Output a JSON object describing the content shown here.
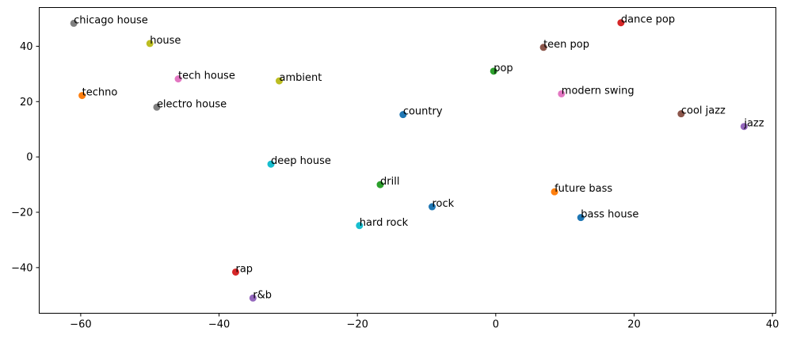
{
  "chart_data": {
    "type": "scatter",
    "title": "",
    "xlabel": "",
    "ylabel": "",
    "xlim": [
      -66,
      40.5
    ],
    "ylim": [
      -56.5,
      54
    ],
    "grid": false,
    "xticks": [
      -60,
      -40,
      -20,
      0,
      20,
      40
    ],
    "yticks": [
      -40,
      -20,
      0,
      20,
      40
    ],
    "xtick_labels": [
      "−60",
      "−40",
      "−20",
      "0",
      "20",
      "40"
    ],
    "ytick_labels": [
      "−40",
      "−20",
      "0",
      "20",
      "40"
    ],
    "points": [
      {
        "label": "chicago house",
        "x": -61.0,
        "y": 48.3,
        "color": "#7f7f7f"
      },
      {
        "label": "house",
        "x": -50.0,
        "y": 41.0,
        "color": "#bcbd22"
      },
      {
        "label": "tech house",
        "x": -45.9,
        "y": 28.2,
        "color": "#e377c2"
      },
      {
        "label": "ambient",
        "x": -31.3,
        "y": 27.5,
        "color": "#bcbd22"
      },
      {
        "label": "techno",
        "x": -59.8,
        "y": 22.2,
        "color": "#ff7f0e"
      },
      {
        "label": "electro house",
        "x": -49.0,
        "y": 18.0,
        "color": "#7f7f7f"
      },
      {
        "label": "country",
        "x": -13.4,
        "y": 15.3,
        "color": "#1f77b4"
      },
      {
        "label": "pop",
        "x": -0.3,
        "y": 31.0,
        "color": "#2ca02c"
      },
      {
        "label": "teen pop",
        "x": 6.9,
        "y": 39.6,
        "color": "#8c564b"
      },
      {
        "label": "dance pop",
        "x": 18.1,
        "y": 48.5,
        "color": "#d62728"
      },
      {
        "label": "modern swing",
        "x": 9.5,
        "y": 22.8,
        "color": "#e377c2"
      },
      {
        "label": "cool jazz",
        "x": 26.8,
        "y": 15.6,
        "color": "#8c564b"
      },
      {
        "label": "jazz",
        "x": 35.9,
        "y": 11.0,
        "color": "#9467bd"
      },
      {
        "label": "deep house",
        "x": -32.5,
        "y": -2.6,
        "color": "#17becf"
      },
      {
        "label": "drill",
        "x": -16.7,
        "y": -10.0,
        "color": "#2ca02c"
      },
      {
        "label": "rock",
        "x": -9.2,
        "y": -18.0,
        "color": "#1f77b4"
      },
      {
        "label": "future bass",
        "x": 8.5,
        "y": -12.6,
        "color": "#ff7f0e"
      },
      {
        "label": "bass house",
        "x": 12.3,
        "y": -21.9,
        "color": "#1f77b4"
      },
      {
        "label": "hard rock",
        "x": -19.7,
        "y": -24.8,
        "color": "#17becf"
      },
      {
        "label": "rap",
        "x": -37.6,
        "y": -41.6,
        "color": "#d62728"
      },
      {
        "label": "r&b",
        "x": -35.1,
        "y": -51.0,
        "color": "#9467bd"
      }
    ]
  }
}
